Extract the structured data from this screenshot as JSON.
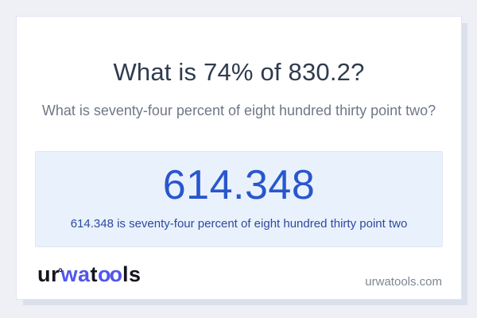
{
  "page": {
    "background_color": "#eef0f6"
  },
  "card": {
    "background_color": "#ffffff",
    "border_color": "#e3e4f2"
  },
  "question": {
    "title": "What is 74% of 830.2?",
    "subtitle": "What is seventy-four percent of eight hundred thirty point two?",
    "title_color": "#2f3b4e",
    "subtitle_color": "#6f7787"
  },
  "result": {
    "value": "614.348",
    "sentence": "614.348 is seventy-four percent of eight hundred thirty point two",
    "box_background_color": "#e9f1fc",
    "value_color": "#2857cd",
    "sentence_color": "#2c4a9e"
  },
  "footer": {
    "logo": {
      "seg_ur": "ur",
      "seg_ring": "°",
      "seg_wa": "wa",
      "seg_t": "t",
      "seg_oo": "oo",
      "seg_ls": "ls",
      "brand_blue": "#5156ee",
      "brand_dark": "#15161c"
    },
    "site_url": "urwatools.com"
  }
}
